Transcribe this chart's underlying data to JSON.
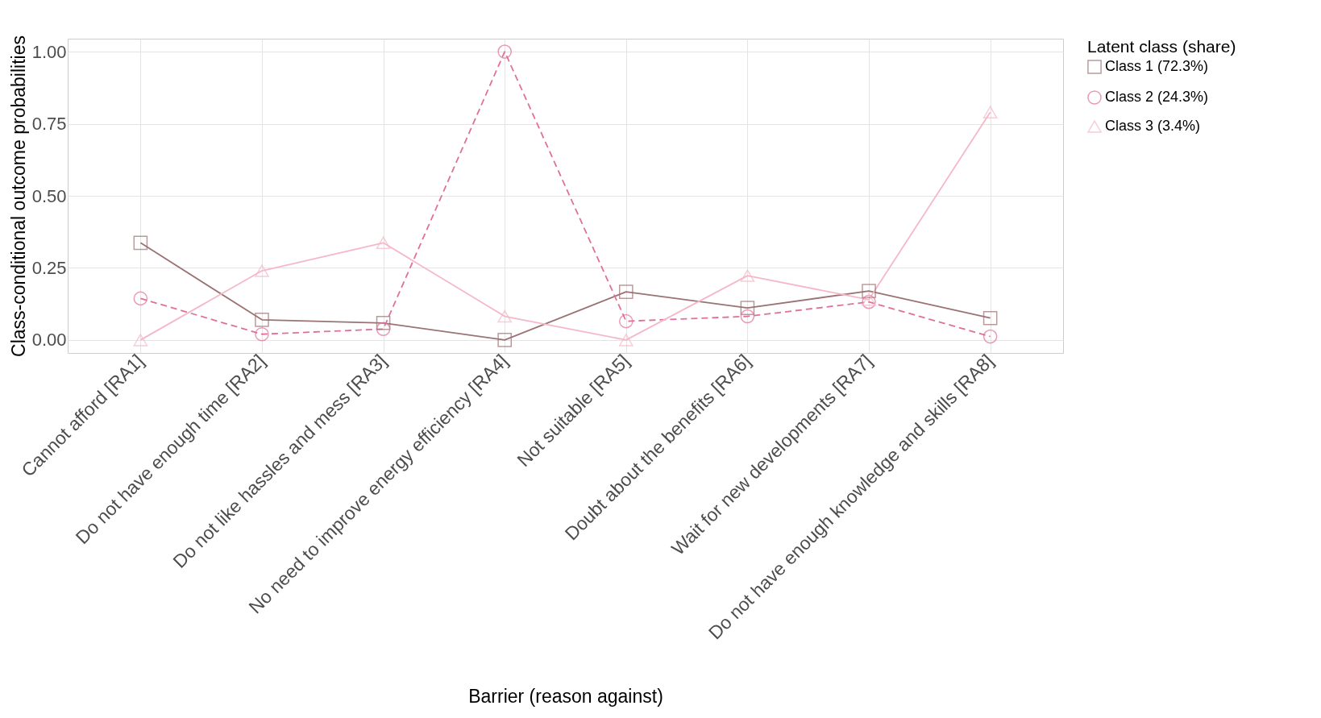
{
  "chart_data": {
    "type": "line",
    "xlabel": "Barrier (reason against)",
    "ylabel": "Class-conditional outcome probabilities",
    "legend_title": "Latent class (share)",
    "categories": [
      "Cannot afford [RA1]",
      "Do not have enough time [RA2]",
      "Do not like hassles and mess [RA3]",
      "No need to improve energy efficiency [RA4]",
      "Not suitable [RA5]",
      "Doubt about the benefits [RA6]",
      "Wait for new developments [RA7]",
      "Do not have enough knowledge and skills [RA8]"
    ],
    "series": [
      {
        "name": "Class 1 (72.3%)",
        "color": "#9b7373",
        "marker": "square",
        "line_style": "solid",
        "values": [
          0.337,
          0.07,
          0.059,
          0,
          0.167,
          0.111,
          0.17,
          0.076
        ]
      },
      {
        "name": "Class 2 (24.3%)",
        "color": "#e0709a",
        "marker": "circle",
        "line_style": "dashed",
        "values": [
          0.144,
          0.02,
          0.038,
          1.0,
          0.065,
          0.082,
          0.132,
          0.012
        ]
      },
      {
        "name": "Class 3 (3.4%)",
        "color": "#f5b8c8",
        "marker": "triangle",
        "line_style": "solid",
        "values": [
          0,
          0.24,
          0.337,
          0.082,
          0,
          0.223,
          0.14,
          0.79
        ]
      }
    ],
    "ylim": [
      -0.045,
      1.045
    ],
    "yticks": [
      {
        "value": 0,
        "label": "0.00"
      },
      {
        "value": 0.25,
        "label": "0.25"
      },
      {
        "value": 0.5,
        "label": "0.50"
      },
      {
        "value": 0.75,
        "label": "0.75"
      },
      {
        "value": 1,
        "label": "1.00"
      }
    ],
    "grid": true,
    "legend": "right"
  }
}
